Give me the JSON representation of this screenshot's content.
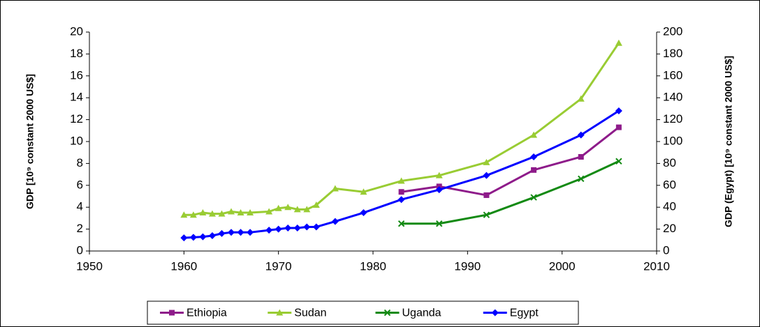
{
  "chart_data": {
    "type": "line",
    "ylabel": "GDP [10⁹ constant 2000 US$]",
    "y2label": "GDP (Egypt) [10⁹ constant 2000 US$]",
    "xlim": [
      1950,
      2010
    ],
    "xticks": [
      1950,
      1960,
      1970,
      1980,
      1990,
      2000,
      2010
    ],
    "ylim": [
      0,
      20
    ],
    "yticks": [
      0,
      2,
      4,
      6,
      8,
      10,
      12,
      14,
      16,
      18,
      20
    ],
    "y2lim": [
      0,
      200
    ],
    "y2ticks": [
      0,
      20,
      40,
      60,
      80,
      100,
      120,
      140,
      160,
      180,
      200
    ],
    "legend": "bottom",
    "series": [
      {
        "name": "Ethiopia",
        "color": "#8e1b8a",
        "marker": "square",
        "x": [
          1983,
          1987,
          1992,
          1997,
          2002,
          2006
        ],
        "values": [
          5.4,
          5.9,
          5.1,
          7.4,
          8.6,
          11.3
        ]
      },
      {
        "name": "Sudan",
        "color": "#99cc33",
        "marker": "triangle",
        "x": [
          1960,
          1961,
          1962,
          1963,
          1964,
          1965,
          1966,
          1967,
          1969,
          1970,
          1971,
          1972,
          1973,
          1974,
          1976,
          1979,
          1983,
          1987,
          1992,
          1997,
          2002,
          2006
        ],
        "values": [
          3.3,
          3.3,
          3.5,
          3.4,
          3.4,
          3.6,
          3.5,
          3.5,
          3.6,
          3.9,
          4.0,
          3.8,
          3.8,
          4.2,
          5.7,
          5.4,
          6.4,
          6.9,
          8.1,
          10.6,
          13.9,
          19.0
        ]
      },
      {
        "name": "Uganda",
        "color": "#138a13",
        "marker": "x",
        "x": [
          1983,
          1987,
          1992,
          1997,
          2002,
          2006
        ],
        "values": [
          2.5,
          2.5,
          3.3,
          4.9,
          6.6,
          8.2
        ]
      },
      {
        "name": "Egypt",
        "color": "#0000ff",
        "marker": "diamond",
        "axis": "y2",
        "x": [
          1960,
          1961,
          1962,
          1963,
          1964,
          1965,
          1966,
          1967,
          1969,
          1970,
          1971,
          1972,
          1973,
          1974,
          1976,
          1979,
          1983,
          1987,
          1992,
          1997,
          2002,
          2006
        ],
        "values": [
          12,
          12.5,
          13,
          14,
          16,
          17,
          17,
          17,
          19,
          20,
          21,
          21,
          22,
          22,
          27,
          35,
          47,
          56,
          69,
          86,
          106,
          128
        ]
      }
    ]
  }
}
